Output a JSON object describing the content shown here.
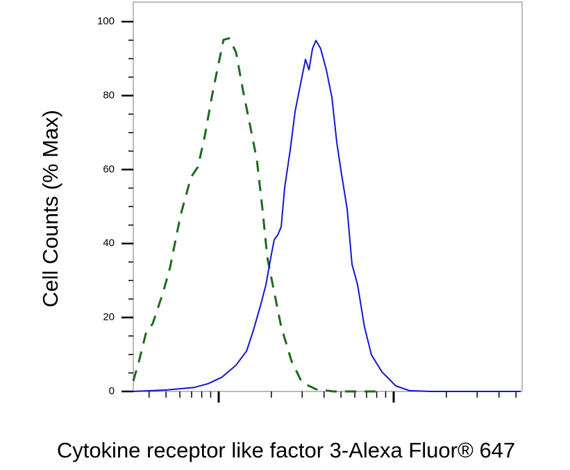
{
  "chart_data": {
    "type": "line",
    "y_label": "Cell Counts (% Max)",
    "x_label": "Cytokine receptor like factor 3-Alexa Fluor® 647",
    "x_log": true,
    "xlim": [
      325,
      54200
    ],
    "xticks": [
      1000,
      10000
    ],
    "xminor_ticks": [
      400,
      500,
      600,
      700,
      800,
      900,
      2000,
      3000,
      4000,
      5000,
      6000,
      7000,
      8000,
      9000,
      20000,
      30000,
      40000,
      50000
    ],
    "ylim": [
      0,
      105.3
    ],
    "yticks": [
      0,
      20,
      40,
      60,
      80,
      100
    ],
    "yminor_ticks": [
      5,
      10,
      15,
      25,
      30,
      35,
      45,
      50,
      55,
      65,
      70,
      75,
      85,
      90,
      95
    ],
    "series": [
      {
        "color": "#1a6b1a",
        "dashed": true,
        "x": [
          325,
          350,
          383,
          420,
          482,
          527,
          605,
          694,
          760,
          834,
          912,
          973,
          1066,
          1148,
          1256,
          1377,
          1510,
          1652,
          1778,
          1896,
          2075,
          2275,
          2612,
          2992,
          3595,
          4518,
          8570
        ],
        "values": [
          2.8,
          8.1,
          15.6,
          18.4,
          26.9,
          33.5,
          47.6,
          57.9,
          60.7,
          69.2,
          79.5,
          86.1,
          95.1,
          95.5,
          91.7,
          81.4,
          72.0,
          62.6,
          49.4,
          36.3,
          26.9,
          17.5,
          8.1,
          2.4,
          0.6,
          0,
          0
        ]
      },
      {
        "color": "#1414d2",
        "dashed": false,
        "x": [
          325,
          504,
          726,
          871,
          1047,
          1256,
          1442,
          1578,
          1730,
          1862,
          1985,
          2075,
          2173,
          2275,
          2382,
          2564,
          2735,
          2911,
          3133,
          3281,
          3435,
          3595,
          3828,
          4121,
          4436,
          4730,
          5036,
          5420,
          5780,
          6220,
          6808,
          7464,
          8570,
          10280,
          12340,
          16220,
          53210
        ],
        "values": [
          0,
          0.4,
          1.1,
          2.1,
          3.9,
          7.1,
          10.9,
          16.5,
          23.1,
          28.8,
          36.3,
          41.0,
          42.3,
          44.5,
          55.1,
          65.4,
          75.8,
          82.3,
          89.8,
          87.0,
          92.7,
          94.9,
          92.7,
          87.0,
          79.5,
          67.3,
          58.8,
          49.4,
          34.4,
          28.8,
          17.5,
          9.9,
          5.3,
          1.5,
          0.2,
          0,
          0
        ]
      }
    ]
  }
}
